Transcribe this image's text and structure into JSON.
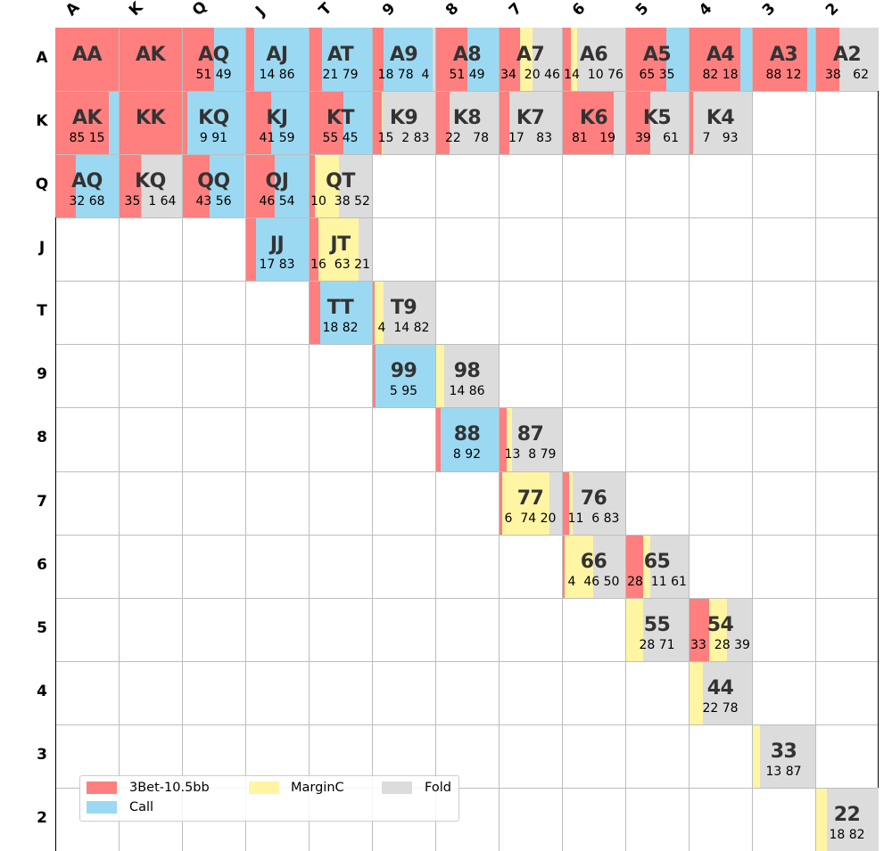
{
  "chart_data": {
    "type": "heatmap",
    "title": "",
    "columns": [
      "A",
      "K",
      "Q",
      "J",
      "T",
      "9",
      "8",
      "7",
      "6",
      "5",
      "4",
      "3",
      "2"
    ],
    "rows": [
      "A",
      "K",
      "Q",
      "J",
      "T",
      "9",
      "8",
      "7",
      "6",
      "5",
      "4",
      "3",
      "2"
    ],
    "actions": [
      "3Bet-10.5bb",
      "Call",
      "MarginC",
      "Fold"
    ],
    "colors": {
      "3Bet-10.5bb": "#ff7f7f",
      "Call": "#9bd9f2",
      "MarginC": "#fff5a3",
      "Fold": "#dcdcdc"
    },
    "legend": {
      "placement": "lower-left",
      "entries": [
        "3Bet-10.5bb",
        "Call",
        "MarginC",
        "Fold"
      ]
    },
    "cells": [
      {
        "row": 0,
        "col": 0,
        "hand": "AA",
        "freq": [
          100,
          0,
          0,
          0
        ],
        "label": ""
      },
      {
        "row": 0,
        "col": 1,
        "hand": "AK",
        "freq": [
          100,
          0,
          0,
          0
        ],
        "label": ""
      },
      {
        "row": 0,
        "col": 2,
        "hand": "AQ",
        "freq": [
          51,
          49,
          0,
          0
        ],
        "label": "51 49"
      },
      {
        "row": 0,
        "col": 3,
        "hand": "AJ",
        "freq": [
          14,
          86,
          0,
          0
        ],
        "label": "14 86"
      },
      {
        "row": 0,
        "col": 4,
        "hand": "AT",
        "freq": [
          21,
          79,
          0,
          0
        ],
        "label": "21 79"
      },
      {
        "row": 0,
        "col": 5,
        "hand": "A9",
        "freq": [
          18,
          78,
          0,
          4
        ],
        "label": "18 78  4"
      },
      {
        "row": 0,
        "col": 6,
        "hand": "A8",
        "freq": [
          51,
          49,
          0,
          0
        ],
        "label": "51 49"
      },
      {
        "row": 0,
        "col": 7,
        "hand": "A7",
        "freq": [
          34,
          0,
          20,
          46
        ],
        "label": "34  20 46"
      },
      {
        "row": 0,
        "col": 8,
        "hand": "A6",
        "freq": [
          14,
          0,
          10,
          76
        ],
        "label": "14  10 76"
      },
      {
        "row": 0,
        "col": 9,
        "hand": "A5",
        "freq": [
          65,
          35,
          0,
          0
        ],
        "label": "65 35"
      },
      {
        "row": 0,
        "col": 10,
        "hand": "A4",
        "freq": [
          82,
          18,
          0,
          0
        ],
        "label": "82 18"
      },
      {
        "row": 0,
        "col": 11,
        "hand": "A3",
        "freq": [
          88,
          12,
          0,
          0
        ],
        "label": "88 12"
      },
      {
        "row": 0,
        "col": 12,
        "hand": "A2",
        "freq": [
          38,
          0,
          0,
          62
        ],
        "label": "38   62"
      },
      {
        "row": 1,
        "col": 0,
        "hand": "AK",
        "freq": [
          85,
          15,
          0,
          0
        ],
        "label": "85 15"
      },
      {
        "row": 1,
        "col": 1,
        "hand": "KK",
        "freq": [
          100,
          0,
          0,
          0
        ],
        "label": ""
      },
      {
        "row": 1,
        "col": 2,
        "hand": "KQ",
        "freq": [
          9,
          91,
          0,
          0
        ],
        "label": "9 91"
      },
      {
        "row": 1,
        "col": 3,
        "hand": "KJ",
        "freq": [
          41,
          59,
          0,
          0
        ],
        "label": "41 59"
      },
      {
        "row": 1,
        "col": 4,
        "hand": "KT",
        "freq": [
          55,
          45,
          0,
          0
        ],
        "label": "55 45"
      },
      {
        "row": 1,
        "col": 5,
        "hand": "K9",
        "freq": [
          15,
          0,
          2,
          83
        ],
        "label": "15  2 83"
      },
      {
        "row": 1,
        "col": 6,
        "hand": "K8",
        "freq": [
          22,
          0,
          0,
          78
        ],
        "label": "22   78"
      },
      {
        "row": 1,
        "col": 7,
        "hand": "K7",
        "freq": [
          17,
          0,
          0,
          83
        ],
        "label": "17   83"
      },
      {
        "row": 1,
        "col": 8,
        "hand": "K6",
        "freq": [
          81,
          0,
          0,
          19
        ],
        "label": "81   19"
      },
      {
        "row": 1,
        "col": 9,
        "hand": "K5",
        "freq": [
          39,
          0,
          0,
          61
        ],
        "label": "39   61"
      },
      {
        "row": 1,
        "col": 10,
        "hand": "K4",
        "freq": [
          7,
          0,
          0,
          93
        ],
        "label": "7   93"
      },
      {
        "row": 2,
        "col": 0,
        "hand": "AQ",
        "freq": [
          32,
          68,
          0,
          0
        ],
        "label": "32 68"
      },
      {
        "row": 2,
        "col": 1,
        "hand": "KQ",
        "freq": [
          35,
          1,
          0,
          64
        ],
        "label": "35  1 64"
      },
      {
        "row": 2,
        "col": 2,
        "hand": "QQ",
        "freq": [
          43,
          56,
          0,
          1
        ],
        "label": "43 56"
      },
      {
        "row": 2,
        "col": 3,
        "hand": "QJ",
        "freq": [
          46,
          54,
          0,
          0
        ],
        "label": "46 54"
      },
      {
        "row": 2,
        "col": 4,
        "hand": "QT",
        "freq": [
          10,
          0,
          38,
          52
        ],
        "label": "10  38 52"
      },
      {
        "row": 3,
        "col": 3,
        "hand": "JJ",
        "freq": [
          17,
          83,
          0,
          0
        ],
        "label": "17 83"
      },
      {
        "row": 3,
        "col": 4,
        "hand": "JT",
        "freq": [
          16,
          0,
          63,
          21
        ],
        "label": "16  63 21"
      },
      {
        "row": 4,
        "col": 4,
        "hand": "TT",
        "freq": [
          18,
          82,
          0,
          0
        ],
        "label": "18 82"
      },
      {
        "row": 4,
        "col": 5,
        "hand": "T9",
        "freq": [
          4,
          0,
          14,
          82
        ],
        "label": "4  14 82"
      },
      {
        "row": 5,
        "col": 5,
        "hand": "99",
        "freq": [
          5,
          95,
          0,
          0
        ],
        "label": "5 95"
      },
      {
        "row": 5,
        "col": 6,
        "hand": "98",
        "freq": [
          0,
          0,
          14,
          86
        ],
        "label": "14 86"
      },
      {
        "row": 6,
        "col": 6,
        "hand": "88",
        "freq": [
          8,
          92,
          0,
          0
        ],
        "label": "8 92"
      },
      {
        "row": 6,
        "col": 7,
        "hand": "87",
        "freq": [
          13,
          0,
          8,
          79
        ],
        "label": "13  8 79"
      },
      {
        "row": 7,
        "col": 7,
        "hand": "77",
        "freq": [
          6,
          0,
          74,
          20
        ],
        "label": "6  74 20"
      },
      {
        "row": 7,
        "col": 8,
        "hand": "76",
        "freq": [
          11,
          0,
          6,
          83
        ],
        "label": "11  6 83"
      },
      {
        "row": 8,
        "col": 8,
        "hand": "66",
        "freq": [
          4,
          0,
          46,
          50
        ],
        "label": "4  46 50"
      },
      {
        "row": 8,
        "col": 9,
        "hand": "65",
        "freq": [
          28,
          0,
          11,
          61
        ],
        "label": "28  11 61"
      },
      {
        "row": 9,
        "col": 9,
        "hand": "55",
        "freq": [
          0,
          0,
          28,
          71
        ],
        "label": "28 71"
      },
      {
        "row": 9,
        "col": 10,
        "hand": "54",
        "freq": [
          33,
          0,
          28,
          39
        ],
        "label": "33  28 39"
      },
      {
        "row": 10,
        "col": 10,
        "hand": "44",
        "freq": [
          0,
          0,
          22,
          78
        ],
        "label": "22 78"
      },
      {
        "row": 11,
        "col": 11,
        "hand": "33",
        "freq": [
          0,
          0,
          13,
          87
        ],
        "label": "13 87"
      },
      {
        "row": 12,
        "col": 12,
        "hand": "22",
        "freq": [
          0,
          0,
          18,
          82
        ],
        "label": "18 82"
      }
    ]
  }
}
